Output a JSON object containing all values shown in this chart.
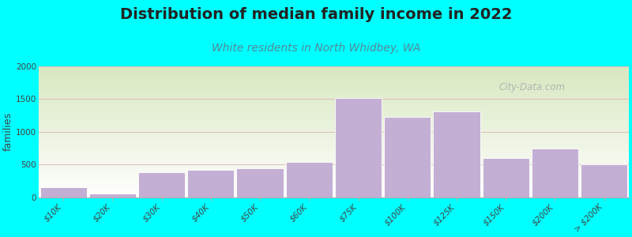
{
  "title": "Distribution of median family income in 2022",
  "subtitle": "White residents in North Whidbey, WA",
  "ylabel": "families",
  "categories": [
    "$10K",
    "$20K",
    "$30K",
    "$40K",
    "$50K",
    "$60K",
    "$75K",
    "$100K",
    "$125K",
    "$150K",
    "$200K",
    "> $200K"
  ],
  "bar_values": [
    150,
    60,
    380,
    420,
    450,
    540,
    1520,
    1230,
    1310,
    600,
    750,
    500
  ],
  "bar_color": "#c4afd4",
  "bar_edge_color": "#ffffff",
  "background_color": "#00ffff",
  "grad_top_color": "#d8e8c0",
  "grad_bottom_color": "#ffffff",
  "title_fontsize": 14,
  "subtitle_fontsize": 10,
  "ylabel_fontsize": 9,
  "tick_fontsize": 7.5,
  "ylim": [
    0,
    2000
  ],
  "yticks": [
    0,
    500,
    1000,
    1500,
    2000
  ],
  "watermark": "City-Data.com",
  "grid_color": "#ddbbbb",
  "subtitle_color": "#558899",
  "title_color": "#222222"
}
